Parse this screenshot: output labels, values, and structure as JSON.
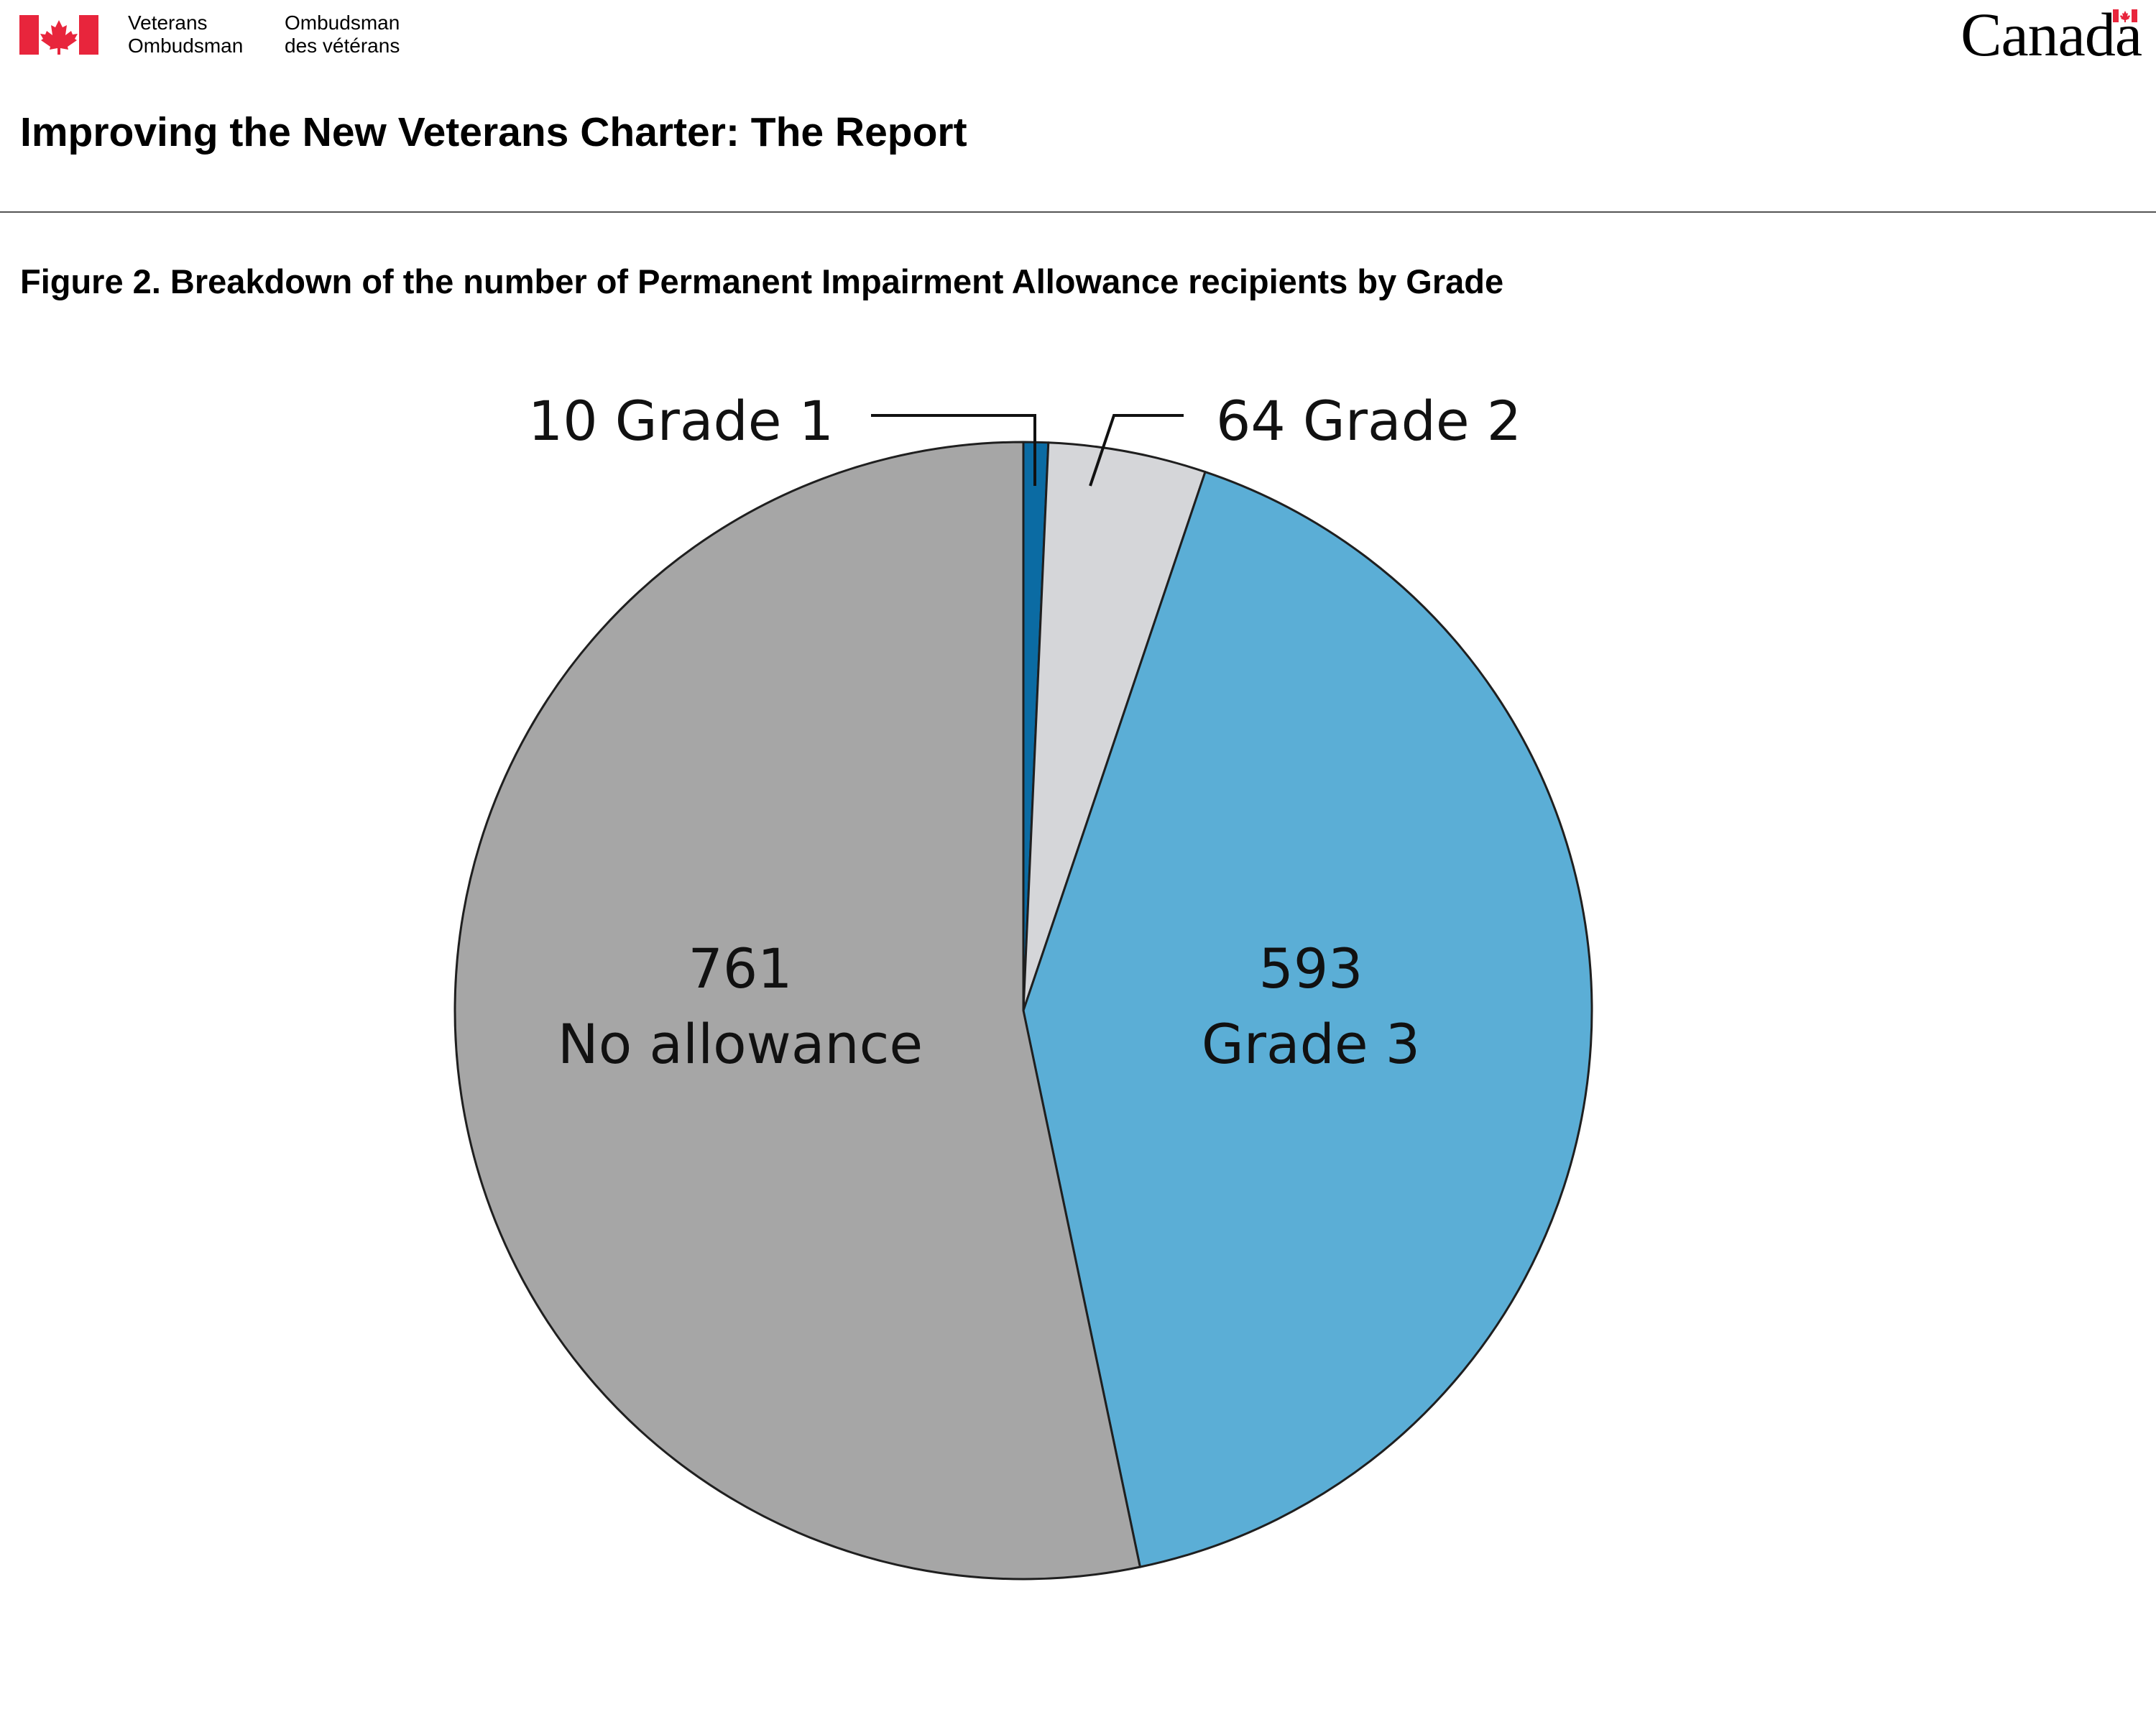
{
  "header": {
    "org_en_line1": "Veterans",
    "org_en_line2": "Ombudsman",
    "org_fr_line1": "Ombudsman",
    "org_fr_line2": "des vétérans",
    "wordmark": "Canada",
    "brand_red": "#e8253c"
  },
  "page_title": "Improving the New Veterans Charter: The Report",
  "chart_data": {
    "type": "pie",
    "title": "Figure 2. Breakdown of the number of Permanent Impairment Allowance recipients by Grade",
    "start_angle": "12 o'clock, clockwise",
    "slices": [
      {
        "label": "Grade 1",
        "value": 10,
        "color": "#0b6ba3",
        "label_text": "10 Grade 1"
      },
      {
        "label": "Grade 2",
        "value": 64,
        "color": "#d5d6d9",
        "label_text": "64 Grade 2"
      },
      {
        "label": "Grade 3",
        "value": 593,
        "color": "#5baed6",
        "label_number": "593",
        "label_name": "Grade 3"
      },
      {
        "label": "No allowance",
        "value": 761,
        "color": "#a6a6a6",
        "label_number": "761",
        "label_name": "No allowance"
      }
    ]
  }
}
